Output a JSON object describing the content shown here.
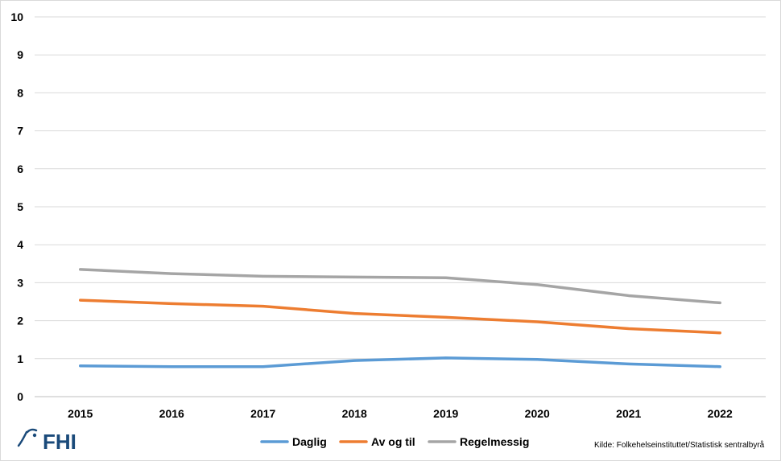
{
  "chart_data": {
    "type": "line",
    "title": "",
    "xlabel": "",
    "ylabel": "",
    "x": [
      "2015",
      "2016",
      "2017",
      "2018",
      "2019",
      "2020",
      "2021",
      "2022"
    ],
    "y_ticks": [
      "0",
      "1",
      "2",
      "3",
      "4",
      "5",
      "6",
      "7",
      "8",
      "9",
      "10"
    ],
    "ylim": [
      0,
      10
    ],
    "grid": true,
    "legend_position": "bottom",
    "series": [
      {
        "name": "Daglig",
        "color": "#5b9bd5",
        "values": [
          0.81,
          0.79,
          0.79,
          0.95,
          1.02,
          0.98,
          0.86,
          0.79
        ]
      },
      {
        "name": "Av og til",
        "color": "#ed7d31",
        "values": [
          2.54,
          2.45,
          2.38,
          2.19,
          2.09,
          1.97,
          1.79,
          1.68
        ]
      },
      {
        "name": "Regelmessig",
        "color": "#a5a5a5",
        "values": [
          3.35,
          3.24,
          3.17,
          3.15,
          3.13,
          2.95,
          2.66,
          2.47
        ]
      }
    ]
  },
  "source_note": "Kilde: Folkehelseinstituttet/Statistisk sentralbyrå",
  "logo": {
    "text": "FHI",
    "color": "#1a4a7a"
  }
}
